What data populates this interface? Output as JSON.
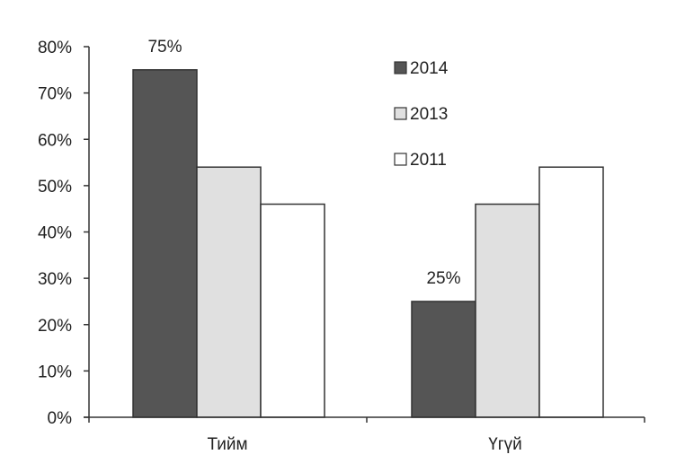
{
  "chart_data": {
    "type": "bar",
    "categories": [
      "Тийм",
      "Үгүй"
    ],
    "series": [
      {
        "name": "2014",
        "values": [
          75,
          25
        ],
        "color": "#555555"
      },
      {
        "name": "2013",
        "values": [
          54,
          46
        ],
        "color": "#e0e0e0"
      },
      {
        "name": "2011",
        "values": [
          46,
          54
        ],
        "color": "#ffffff"
      }
    ],
    "data_labels": [
      {
        "series": "2014",
        "category": "Тийм",
        "text": "75%"
      },
      {
        "series": "2014",
        "category": "Үгүй",
        "text": "25%"
      }
    ],
    "y_ticks": [
      "0%",
      "10%",
      "20%",
      "30%",
      "40%",
      "50%",
      "60%",
      "70%",
      "80%"
    ],
    "ylim": [
      0,
      80
    ],
    "y_unit": "%",
    "grid": false,
    "legend_position": "top-right",
    "title": "",
    "xlabel": "",
    "ylabel": ""
  }
}
